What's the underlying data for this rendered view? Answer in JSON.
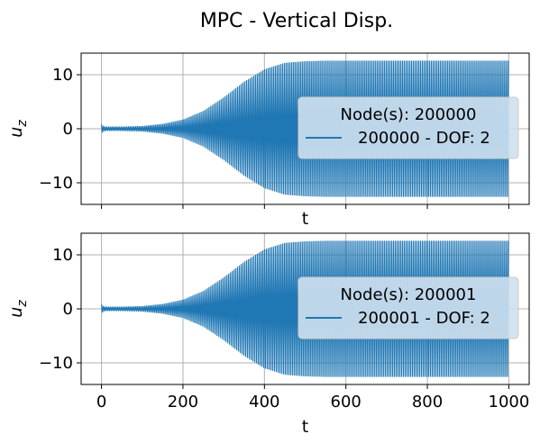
{
  "figure": {
    "title": "MPC - Vertical Disp."
  },
  "colors": {
    "series": "#1f77b4",
    "grid": "#b0b0b0",
    "axis": "#000000",
    "legend_bg": "#cfe0ee",
    "legend_border": "#cccccc"
  },
  "chart_data": [
    {
      "type": "line",
      "title": "",
      "xlabel": "t",
      "ylabel": "u_z",
      "xlim": [
        -50,
        1050
      ],
      "ylim": [
        -14,
        14
      ],
      "xticks": [
        0,
        200,
        400,
        600,
        800,
        1000
      ],
      "yticks": [
        -10,
        0,
        10
      ],
      "x_ticklabels_visible": false,
      "grid": true,
      "legend": {
        "title": "Node(s): 200000",
        "entries": [
          "200000 - DOF: 2"
        ],
        "placement": "right"
      },
      "series": [
        {
          "name": "200000 - DOF: 2",
          "style": "dense oscillation envelope",
          "x": [
            0,
            5,
            10,
            50,
            100,
            150,
            200,
            250,
            300,
            350,
            400,
            450,
            500,
            550,
            600,
            700,
            800,
            900,
            1000
          ],
          "upper": [
            0.8,
            0.5,
            0.4,
            0.4,
            0.5,
            0.9,
            1.7,
            3.3,
            5.8,
            8.7,
            11.0,
            12.2,
            12.5,
            12.6,
            12.6,
            12.6,
            12.6,
            12.6,
            12.6
          ],
          "lower": [
            -0.8,
            -0.5,
            -0.4,
            -0.4,
            -0.5,
            -0.9,
            -1.7,
            -3.3,
            -5.8,
            -8.7,
            -11.0,
            -12.2,
            -12.5,
            -12.6,
            -12.6,
            -12.6,
            -12.6,
            -12.6,
            -12.6
          ]
        }
      ]
    },
    {
      "type": "line",
      "title": "",
      "xlabel": "t",
      "ylabel": "u_z",
      "xlim": [
        -50,
        1050
      ],
      "ylim": [
        -14,
        14
      ],
      "xticks": [
        0,
        200,
        400,
        600,
        800,
        1000
      ],
      "yticks": [
        -10,
        0,
        10
      ],
      "x_ticklabels_visible": true,
      "grid": true,
      "legend": {
        "title": "Node(s): 200001",
        "entries": [
          "200001 - DOF: 2"
        ],
        "placement": "right"
      },
      "series": [
        {
          "name": "200001 - DOF: 2",
          "style": "dense oscillation envelope",
          "x": [
            0,
            5,
            10,
            50,
            100,
            150,
            200,
            250,
            300,
            350,
            400,
            450,
            500,
            550,
            600,
            700,
            800,
            900,
            1000
          ],
          "upper": [
            0.8,
            0.5,
            0.4,
            0.4,
            0.5,
            0.9,
            1.7,
            3.3,
            5.8,
            8.7,
            11.0,
            12.2,
            12.5,
            12.6,
            12.6,
            12.6,
            12.6,
            12.6,
            12.6
          ],
          "lower": [
            -0.8,
            -0.5,
            -0.4,
            -0.4,
            -0.5,
            -0.9,
            -1.7,
            -3.3,
            -5.8,
            -8.7,
            -11.0,
            -12.2,
            -12.5,
            -12.6,
            -12.6,
            -12.6,
            -12.6,
            -12.6,
            -12.6
          ]
        }
      ]
    }
  ]
}
